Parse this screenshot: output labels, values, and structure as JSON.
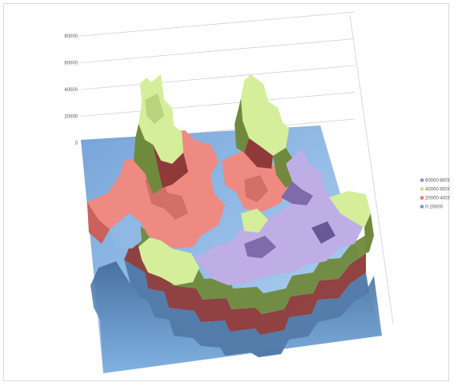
{
  "chart_data": {
    "type": "surface-3d",
    "title": "",
    "xlabel": "",
    "ylabel": "",
    "zlim": [
      0,
      80000
    ],
    "z_ticks": [
      {
        "value": 0,
        "label": "0"
      },
      {
        "value": 20000,
        "label": "20000"
      },
      {
        "value": 40000,
        "label": "40000"
      },
      {
        "value": 60000,
        "label": "60000"
      },
      {
        "value": 80000,
        "label": "80000"
      }
    ],
    "grid": true,
    "legend_position": "right",
    "series": [
      {
        "name": "60000-80000",
        "range": [
          60000,
          80000
        ],
        "color": "#9e86c8"
      },
      {
        "name": "40000-60000",
        "range": [
          40000,
          60000
        ],
        "color": "#c6e48b"
      },
      {
        "name": "20000-40000",
        "range": [
          20000,
          40000
        ],
        "color": "#e8766e"
      },
      {
        "name": "0-20000",
        "range": [
          0,
          20000
        ],
        "color": "#6a9fd8"
      }
    ],
    "surface_colors": {
      "top_violet": "#bfaee6",
      "top_green": "#d4ee9a",
      "top_red": "#ef8a82",
      "side_green": "#6f8a3c",
      "side_red": "#8f3a38",
      "side_blue": "#4f78a8",
      "floor_blue": "#9cc6ef"
    }
  }
}
